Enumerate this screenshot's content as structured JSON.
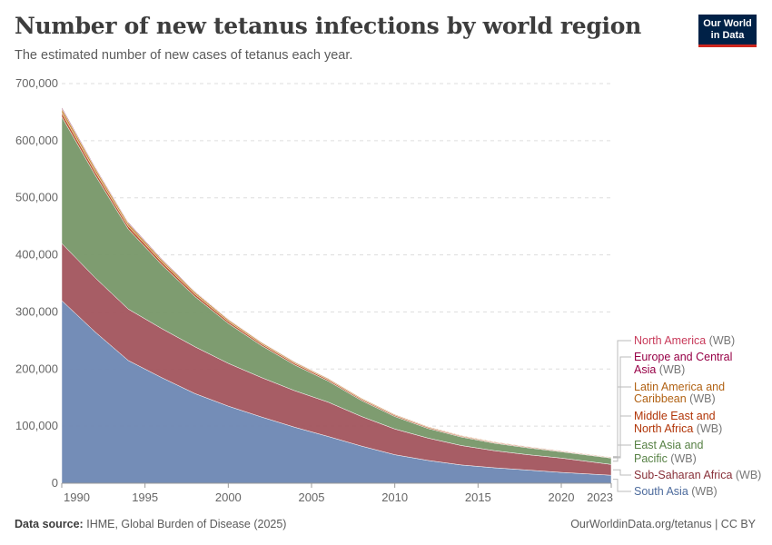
{
  "header": {
    "title": "Number of new tetanus infections by world region",
    "subtitle": "The estimated number of new cases of tetanus each year."
  },
  "logo": {
    "line1": "Our World",
    "line2": "in Data"
  },
  "footer": {
    "source_label": "Data source:",
    "source_text": "IHME, Global Burden of Disease (2025)",
    "url_text": "OurWorldinData.org/tetanus | CC BY"
  },
  "chart_data": {
    "type": "area",
    "stacked": true,
    "x": [
      1990,
      1992,
      1994,
      1996,
      1998,
      2000,
      2002,
      2004,
      2006,
      2008,
      2010,
      2012,
      2014,
      2016,
      2018,
      2020,
      2023
    ],
    "xticks": [
      {
        "value": 1990,
        "label": "1990"
      },
      {
        "value": 1995,
        "label": "1995"
      },
      {
        "value": 2000,
        "label": "2000"
      },
      {
        "value": 2005,
        "label": "2005"
      },
      {
        "value": 2010,
        "label": "2010"
      },
      {
        "value": 2015,
        "label": "2015"
      },
      {
        "value": 2020,
        "label": "2020"
      },
      {
        "value": 2023,
        "label": "2023"
      }
    ],
    "yticks": [
      {
        "value": 0,
        "label": "0"
      },
      {
        "value": 100000,
        "label": "100,000"
      },
      {
        "value": 200000,
        "label": "200,000"
      },
      {
        "value": 300000,
        "label": "300,000"
      },
      {
        "value": 400000,
        "label": "400,000"
      },
      {
        "value": 500000,
        "label": "500,000"
      },
      {
        "value": 600000,
        "label": "600,000"
      },
      {
        "value": 700000,
        "label": "700,000"
      }
    ],
    "xlim": [
      1990,
      2023
    ],
    "ylim": [
      0,
      700000
    ],
    "grid": "horizontal-dashed",
    "legend_placement": "right",
    "series": [
      {
        "name": "South Asia",
        "suffix": " (WB)",
        "color": "#6d87b3",
        "label_color": "#4c6a9c",
        "values": [
          320000,
          265000,
          215000,
          185000,
          157000,
          135000,
          116000,
          98000,
          82000,
          65000,
          50000,
          40000,
          32000,
          27000,
          23000,
          19000,
          14000
        ]
      },
      {
        "name": "Sub-Saharan Africa",
        "suffix": " (WB)",
        "color": "#a2545d",
        "label_color": "#883039",
        "values": [
          100000,
          95000,
          90000,
          86000,
          82000,
          75000,
          69000,
          64000,
          60000,
          52000,
          45000,
          39000,
          34000,
          30000,
          27000,
          25000,
          19000
        ]
      },
      {
        "name": "East Asia and Pacific",
        "suffix": " (WB)",
        "color": "#779768",
        "label_color": "#578145",
        "values": [
          222000,
          180000,
          140000,
          112000,
          88000,
          70000,
          56000,
          45000,
          37000,
          28000,
          22000,
          17000,
          15000,
          13000,
          12000,
          11000,
          11000
        ]
      },
      {
        "name": "Middle East and North Africa",
        "suffix": " (WB)",
        "color": "#b74e2a",
        "label_color": "#b13507",
        "values": [
          7000,
          6000,
          5000,
          4500,
          4000,
          3500,
          3000,
          2800,
          2500,
          2200,
          2000,
          1800,
          1600,
          1500,
          1400,
          1300,
          1200
        ]
      },
      {
        "name": "Latin America and Caribbean",
        "suffix": " (WB)",
        "color": "#c98c3a",
        "label_color": "#b16214",
        "values": [
          7000,
          6000,
          5000,
          4000,
          3500,
          3000,
          2600,
          2300,
          2000,
          1800,
          1600,
          1400,
          1300,
          1200,
          1100,
          1000,
          900
        ]
      },
      {
        "name": "Europe and Central Asia",
        "suffix": " (WB)",
        "color": "#8c2d5a",
        "label_color": "#970046",
        "values": [
          3000,
          2500,
          2000,
          1700,
          1400,
          1200,
          1000,
          900,
          800,
          700,
          600,
          550,
          500,
          450,
          400,
          380,
          350
        ]
      },
      {
        "name": "North America",
        "suffix": " (WB)",
        "color": "#c85a73",
        "label_color": "#c83a5a",
        "values": [
          500,
          450,
          400,
          380,
          360,
          340,
          320,
          300,
          290,
          280,
          270,
          260,
          250,
          240,
          230,
          220,
          210
        ]
      }
    ]
  }
}
